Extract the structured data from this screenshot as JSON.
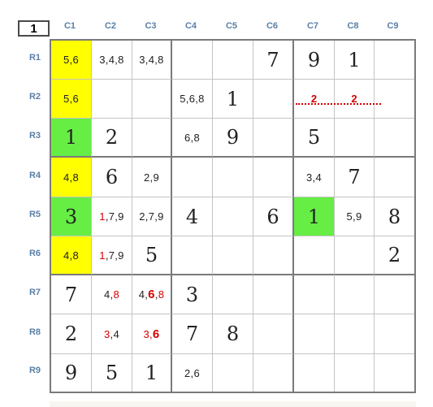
{
  "puzzle_number": "1",
  "col_headers": [
    "C1",
    "C2",
    "C3",
    "C4",
    "C5",
    "C6",
    "C7",
    "C8",
    "C9"
  ],
  "row_headers": [
    "R1",
    "R2",
    "R3",
    "R4",
    "R5",
    "R6",
    "R7",
    "R8",
    "R9"
  ],
  "colors": {
    "highlight_yellow": "#ffff00",
    "highlight_green": "#66ee44",
    "red": "#d40000",
    "header_blue": "#5a7fa8"
  },
  "grid": [
    [
      {
        "c": "5,6",
        "bg": "yellow"
      },
      {
        "c": "3,4,8"
      },
      {
        "c": "3,4,8"
      },
      {},
      {},
      {
        "v": "7"
      },
      {
        "v": "9"
      },
      {
        "v": "1"
      },
      {}
    ],
    [
      {
        "c": "5,6",
        "bg": "yellow"
      },
      {},
      {},
      {
        "c": "5,6,8"
      },
      {
        "v": "1"
      },
      {},
      {
        "red": "2"
      },
      {
        "red": "2"
      },
      {}
    ],
    [
      {
        "v": "1",
        "bg": "green"
      },
      {
        "v": "2"
      },
      {},
      {
        "c": "6,8"
      },
      {
        "v": "9"
      },
      {},
      {
        "v": "5"
      },
      {},
      {}
    ],
    [
      {
        "c": "4,8",
        "bg": "yellow"
      },
      {
        "v": "6"
      },
      {
        "c": "2,9"
      },
      {},
      {},
      {},
      {
        "c": "3,4"
      },
      {
        "v": "7"
      },
      {}
    ],
    [
      {
        "v": "3",
        "bg": "green"
      },
      {
        "p": [
          [
            "1",
            "r"
          ],
          [
            ",7,9",
            ""
          ]
        ]
      },
      {
        "c": "2,7,9"
      },
      {
        "v": "4"
      },
      {},
      {
        "v": "6"
      },
      {
        "v": "1",
        "bg": "green"
      },
      {
        "c": "5,9"
      },
      {
        "v": "8"
      }
    ],
    [
      {
        "c": "4,8",
        "bg": "yellow"
      },
      {
        "p": [
          [
            "1",
            "r"
          ],
          [
            ",7,9",
            ""
          ]
        ]
      },
      {
        "v": "5"
      },
      {},
      {},
      {},
      {},
      {},
      {
        "v": "2"
      }
    ],
    [
      {
        "v": "7"
      },
      {
        "p": [
          [
            "4,",
            ""
          ],
          [
            "8",
            "r"
          ]
        ]
      },
      {
        "p": [
          [
            "4,",
            ""
          ],
          [
            "6",
            "rb"
          ],
          [
            ",",
            ""
          ],
          [
            "8",
            "r"
          ]
        ]
      },
      {
        "v": "3"
      },
      {},
      {},
      {},
      {},
      {}
    ],
    [
      {
        "v": "2"
      },
      {
        "p": [
          [
            "3",
            "r"
          ],
          [
            ",4",
            ""
          ]
        ]
      },
      {
        "p": [
          [
            "3,",
            "r"
          ],
          [
            "6",
            "rb"
          ]
        ]
      },
      {
        "v": "7"
      },
      {
        "v": "8"
      },
      {},
      {},
      {},
      {}
    ],
    [
      {
        "v": "9"
      },
      {
        "v": "5"
      },
      {
        "v": "1"
      },
      {
        "c": "2,6"
      },
      {},
      {},
      {},
      {},
      {}
    ]
  ]
}
